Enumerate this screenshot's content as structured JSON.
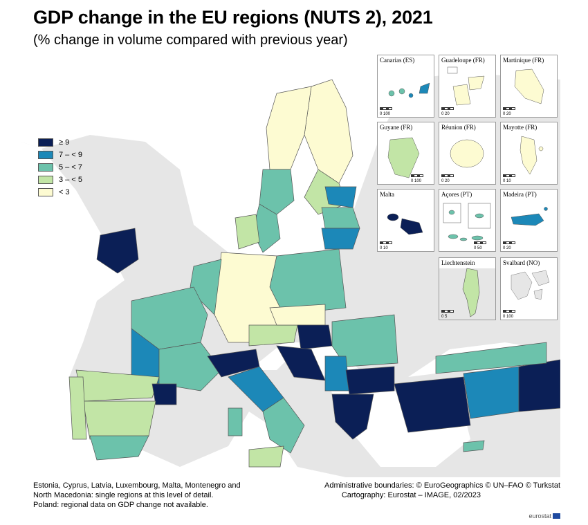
{
  "title": "GDP change in the EU regions (NUTS 2), 2021",
  "subtitle": "(% change in volume compared with previous year)",
  "legend": [
    {
      "label": "≥ 9",
      "color": "#0b1f56"
    },
    {
      "label": "7 – < 9",
      "color": "#1c88b8"
    },
    {
      "label": "5 – < 7",
      "color": "#6cc2ab"
    },
    {
      "label": "3 – < 5",
      "color": "#c2e5a6"
    },
    {
      "label": "< 3",
      "color": "#fdfbd2"
    }
  ],
  "colors": {
    "sea": "#ffffff",
    "non_eu": "#e6e6e6",
    "border": "#555555"
  },
  "insets": [
    {
      "label": "Canarias (ES)",
      "scale": "0    100"
    },
    {
      "label": "Guadeloupe (FR)",
      "scale": "0    20"
    },
    {
      "label": "Martinique (FR)",
      "scale": "0    20"
    },
    {
      "label": "Guyane (FR)",
      "scale": "0   100"
    },
    {
      "label": "Réunion (FR)",
      "scale": "0    20"
    },
    {
      "label": "Mayotte (FR)",
      "scale": "0    10"
    },
    {
      "label": "Malta",
      "scale": "0    10"
    },
    {
      "label": "Açores (PT)",
      "scale": "0    50"
    },
    {
      "label": "Madeira (PT)",
      "scale": "0    20"
    },
    {
      "label": "Liechtenstein",
      "scale": "0    5"
    },
    {
      "label": "Svalbard (NO)",
      "scale": "0   100"
    }
  ],
  "footnote": {
    "line1": "Estonia, Cyprus, Latvia, Luxembourg, Malta, Montenegro and",
    "line2": "North Macedonia: single regions at this level of detail.",
    "line3": "Poland: regional data on GDP change not available."
  },
  "credits": {
    "line1": "Administrative boundaries: © EuroGeographics © UN–FAO © Turkstat",
    "line2": "Cartography: Eurostat – IMAGE, 02/2023"
  },
  "brand": "eurostat"
}
